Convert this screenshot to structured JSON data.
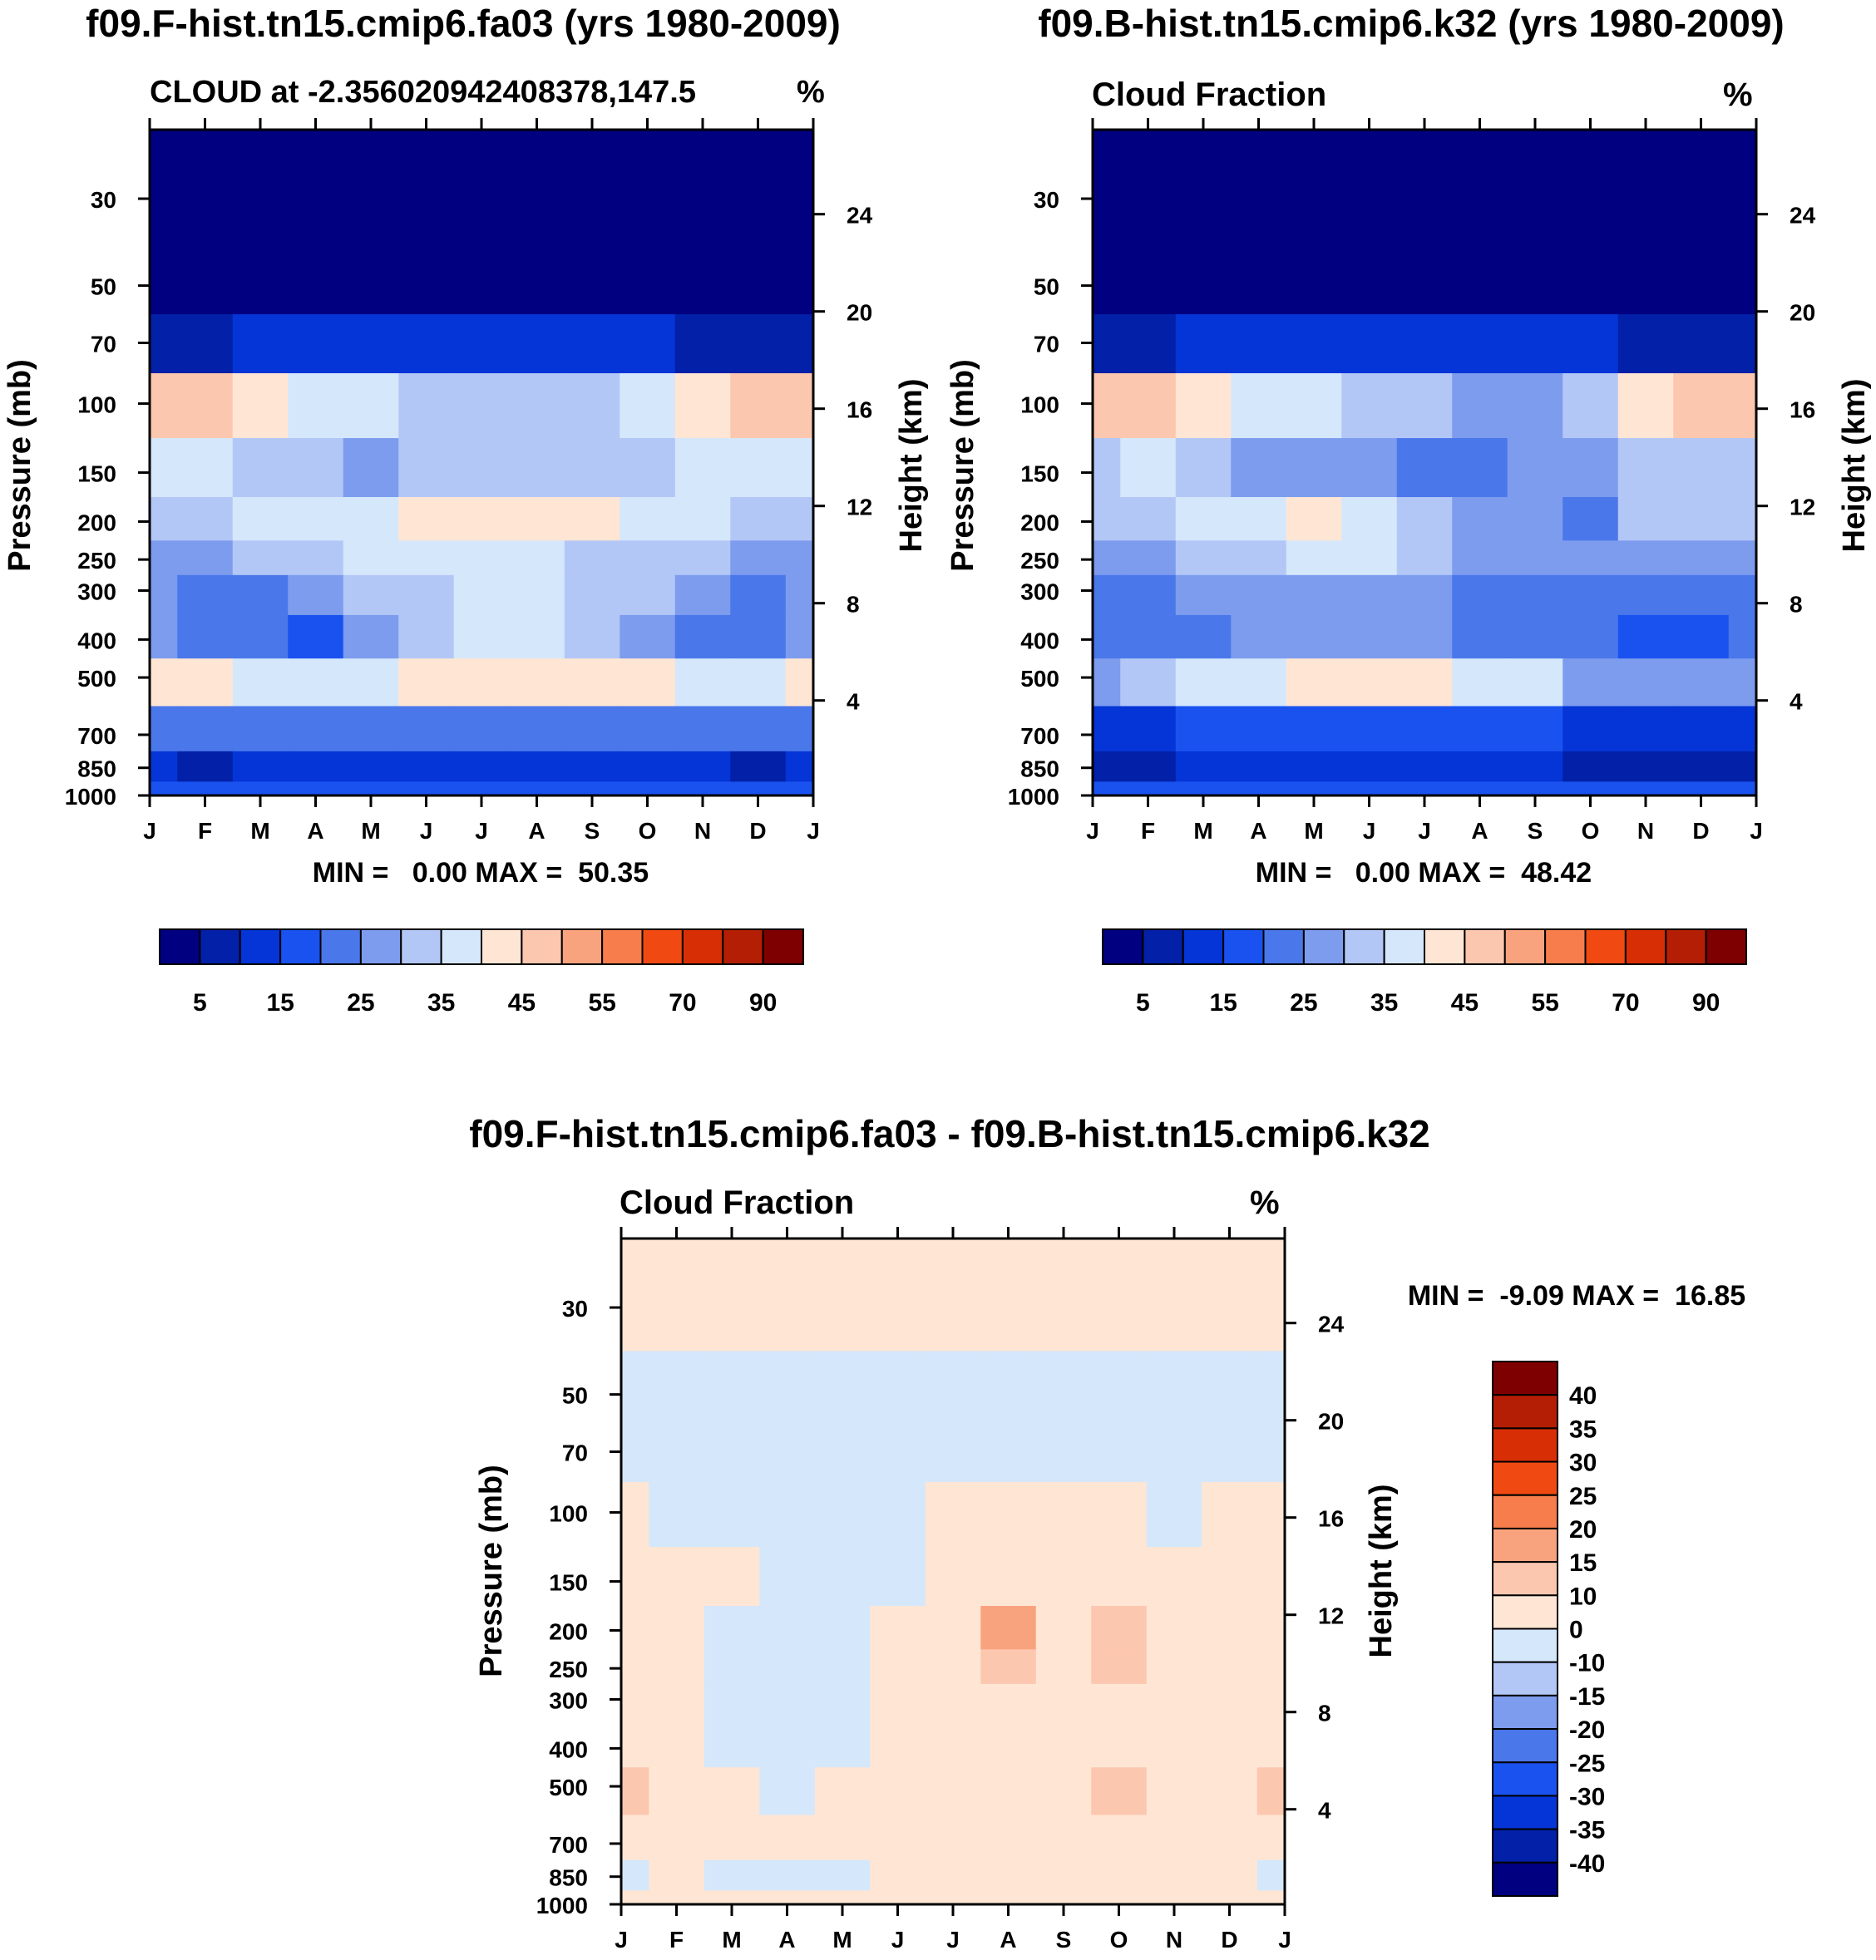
{
  "colors": {
    "cloud_scale": [
      "#000080",
      "#0220a8",
      "#0535d6",
      "#1a52f0",
      "#4a77ea",
      "#7d9cee",
      "#b3c7f7",
      "#d5e7fb",
      "#ffe6d4",
      "#fcc7af",
      "#f9a37e",
      "#f77e4c",
      "#f04a12",
      "#d82e05",
      "#b41e04",
      "#7f0000"
    ],
    "diff_scale": [
      "#000080",
      "#0220a8",
      "#0535d6",
      "#1a52f0",
      "#4a77ea",
      "#7d9cee",
      "#b3c7f7",
      "#d5e7fb",
      "#ffe6d4",
      "#fcc7af",
      "#f9a37e",
      "#f77e4c",
      "#f04a12",
      "#d82e05",
      "#b41e04",
      "#7f0000"
    ]
  },
  "panels": [
    {
      "title": "f09.F-hist.tn15.cmip6.fa03 (yrs 1980-2009)",
      "subtitle_left": "CLOUD at -2.356020942408378,147.5",
      "subtitle_right": "%",
      "minmax": "MIN =   0.00 MAX =  50.35",
      "ylabel": "Pressure (mb)",
      "ylabel_right": "Height (km)"
    },
    {
      "title": "f09.B-hist.tn15.cmip6.k32 (yrs 1980-2009)",
      "subtitle_left": "Cloud Fraction",
      "subtitle_right": "%",
      "minmax": "MIN =   0.00 MAX =  48.42",
      "ylabel": "Pressure (mb)",
      "ylabel_right": "Height (km)"
    },
    {
      "title": "f09.F-hist.tn15.cmip6.fa03 - f09.B-hist.tn15.cmip6.k32",
      "subtitle_left": "Cloud Fraction",
      "subtitle_right": "%",
      "minmax": "MIN =  -9.09 MAX =  16.85",
      "ylabel": "Pressure (mb)",
      "ylabel_right": "Height (km)"
    }
  ],
  "chart_data": [
    {
      "type": "heatmap",
      "title": "f09.F-hist.tn15.cmip6.fa03 (yrs 1980-2009)",
      "variable": "CLOUD at -2.356020942408378,147.5",
      "units": "%",
      "months": [
        "J",
        "F",
        "M",
        "A",
        "M",
        "J",
        "J",
        "A",
        "S",
        "O",
        "N",
        "D",
        "J"
      ],
      "pressure_levels": [
        30,
        50,
        70,
        100,
        150,
        200,
        250,
        300,
        400,
        500,
        700,
        850,
        1000
      ],
      "height_km_ticks": [
        4,
        8,
        12,
        16,
        20,
        24
      ],
      "colorbar_labels": [
        "5",
        "15",
        "25",
        "35",
        "45",
        "55",
        "70",
        "90"
      ],
      "min": 0.0,
      "max": 50.35,
      "values": [
        [
          0,
          0,
          0,
          0,
          0,
          0,
          0,
          0,
          0,
          0,
          0,
          0,
          0
        ],
        [
          0,
          0,
          0,
          0,
          0,
          0,
          0,
          0,
          0,
          0,
          0,
          0,
          0
        ],
        [
          5,
          8,
          10,
          11,
          11,
          12,
          12,
          12,
          11,
          10,
          9,
          7,
          5
        ],
        [
          47,
          48,
          44,
          39,
          36,
          34,
          34,
          34,
          34,
          37,
          43,
          47,
          47
        ],
        [
          37,
          36,
          33,
          30,
          29,
          31,
          33,
          33,
          31,
          32,
          35,
          37,
          37
        ],
        [
          33,
          34,
          35,
          36,
          38,
          40,
          42,
          44,
          42,
          38,
          35,
          33,
          33
        ],
        [
          28,
          28,
          30,
          33,
          35,
          36,
          36,
          35,
          34,
          33,
          30,
          28,
          28
        ],
        [
          25,
          22,
          24,
          27,
          31,
          34,
          36,
          36,
          34,
          31,
          26,
          24,
          25
        ],
        [
          28,
          22,
          21,
          19,
          25,
          32,
          36,
          35,
          32,
          27,
          22,
          20,
          28
        ],
        [
          40,
          40,
          38,
          36,
          38,
          40,
          43,
          44,
          42,
          40,
          38,
          38,
          40
        ],
        [
          22,
          22,
          22,
          21,
          21,
          21,
          21,
          20,
          20,
          20,
          21,
          22,
          22
        ],
        [
          10,
          8,
          10,
          12,
          12,
          12,
          12,
          11,
          12,
          10,
          10,
          8,
          10
        ],
        [
          15,
          15,
          15,
          15,
          15,
          15,
          15,
          15,
          15,
          15,
          15,
          15,
          15
        ]
      ]
    },
    {
      "type": "heatmap",
      "title": "f09.B-hist.tn15.cmip6.k32 (yrs 1980-2009)",
      "variable": "Cloud Fraction",
      "units": "%",
      "months": [
        "J",
        "F",
        "M",
        "A",
        "M",
        "J",
        "J",
        "A",
        "S",
        "O",
        "N",
        "D",
        "J"
      ],
      "pressure_levels": [
        30,
        50,
        70,
        100,
        150,
        200,
        250,
        300,
        400,
        500,
        700,
        850,
        1000
      ],
      "height_km_ticks": [
        4,
        8,
        12,
        16,
        20,
        24
      ],
      "colorbar_labels": [
        "5",
        "15",
        "25",
        "35",
        "45",
        "55",
        "70",
        "90"
      ],
      "min": 0.0,
      "max": 48.42,
      "values": [
        [
          0,
          0,
          0,
          0,
          0,
          0,
          0,
          0,
          0,
          0,
          0,
          0,
          0
        ],
        [
          0,
          0,
          0,
          0,
          0,
          0,
          0,
          0,
          0,
          0,
          0,
          0,
          0
        ],
        [
          6,
          8,
          10,
          11,
          11,
          12,
          12,
          12,
          11,
          10,
          9,
          7,
          6
        ],
        [
          46,
          47,
          44,
          38,
          35,
          32,
          30,
          28,
          28,
          32,
          40,
          45,
          46
        ],
        [
          33,
          35,
          33,
          28,
          27,
          26,
          23,
          20,
          26,
          27,
          31,
          34,
          33
        ],
        [
          30,
          33,
          36,
          38,
          40,
          39,
          32,
          27,
          28,
          24,
          30,
          31,
          30
        ],
        [
          25,
          26,
          30,
          34,
          36,
          35,
          30,
          25,
          26,
          28,
          29,
          25,
          25
        ],
        [
          22,
          23,
          25,
          27,
          28,
          28,
          27,
          24,
          23,
          22,
          21,
          20,
          22
        ],
        [
          20,
          22,
          23,
          25,
          26,
          26,
          25,
          24,
          22,
          20,
          18,
          16,
          20
        ],
        [
          28,
          34,
          37,
          38,
          40,
          41,
          40,
          38,
          35,
          28,
          26,
          26,
          28
        ],
        [
          13,
          14,
          15,
          16,
          16,
          17,
          16,
          16,
          15,
          14,
          13,
          13,
          13
        ],
        [
          8,
          8,
          10,
          10,
          10,
          11,
          11,
          10,
          10,
          8,
          7,
          7,
          8
        ],
        [
          15,
          15,
          15,
          15,
          15,
          15,
          15,
          15,
          15,
          15,
          15,
          15,
          15
        ]
      ]
    },
    {
      "type": "heatmap",
      "title": "f09.F-hist.tn15.cmip6.fa03 - f09.B-hist.tn15.cmip6.k32",
      "variable": "Cloud Fraction",
      "units": "%",
      "months": [
        "J",
        "F",
        "M",
        "A",
        "M",
        "J",
        "J",
        "A",
        "S",
        "O",
        "N",
        "D",
        "J"
      ],
      "pressure_levels": [
        30,
        50,
        70,
        100,
        150,
        200,
        250,
        300,
        400,
        500,
        700,
        850,
        1000
      ],
      "height_km_ticks": [
        4,
        8,
        12,
        16,
        20,
        24
      ],
      "colorbar_labels": [
        "40",
        "35",
        "30",
        "25",
        "20",
        "15",
        "10",
        "0",
        "-10",
        "-15",
        "-20",
        "-25",
        "-30",
        "-35",
        "-40"
      ],
      "min": -9.09,
      "max": 16.85,
      "values": [
        [
          1,
          1,
          1,
          1,
          1,
          1,
          1,
          1,
          1,
          1,
          1,
          1,
          1
        ],
        [
          -1,
          -1,
          -1,
          -1,
          -1,
          -1,
          -1,
          -1,
          -1,
          -1,
          -1,
          -1,
          -1
        ],
        [
          -1,
          -1,
          -1,
          -1,
          -1,
          -1,
          -1,
          -1,
          -1,
          -1,
          -1,
          -1,
          -1
        ],
        [
          1,
          -1,
          -1,
          -1,
          -1,
          -1,
          1,
          1,
          1,
          1,
          -1,
          1,
          1
        ],
        [
          4,
          1,
          1,
          -2,
          -2,
          -1,
          3,
          9,
          4,
          5,
          4,
          3,
          4
        ],
        [
          3,
          1,
          -1,
          -2,
          -2,
          1,
          4,
          15,
          5,
          12,
          4,
          2,
          3
        ],
        [
          3,
          2,
          -1,
          -2,
          -2,
          1,
          5,
          13,
          6,
          10,
          2,
          1,
          3
        ],
        [
          3,
          1,
          -1,
          -2,
          -2,
          1,
          5,
          8,
          4,
          5,
          1,
          1,
          3
        ],
        [
          2,
          1,
          -1,
          -2,
          -2,
          3,
          6,
          4,
          3,
          5,
          2,
          1,
          2
        ],
        [
          11,
          4,
          1,
          -1,
          1,
          3,
          4,
          5,
          6,
          12,
          9,
          9,
          11
        ],
        [
          1,
          1,
          1,
          1,
          1,
          1,
          1,
          1,
          1,
          1,
          1,
          1,
          1
        ],
        [
          -1,
          1,
          -1,
          -3,
          -1,
          1,
          1,
          1,
          1,
          1,
          1,
          1,
          -1
        ],
        [
          1,
          1,
          1,
          1,
          1,
          1,
          1,
          1,
          1,
          1,
          1,
          1,
          1
        ]
      ]
    }
  ]
}
